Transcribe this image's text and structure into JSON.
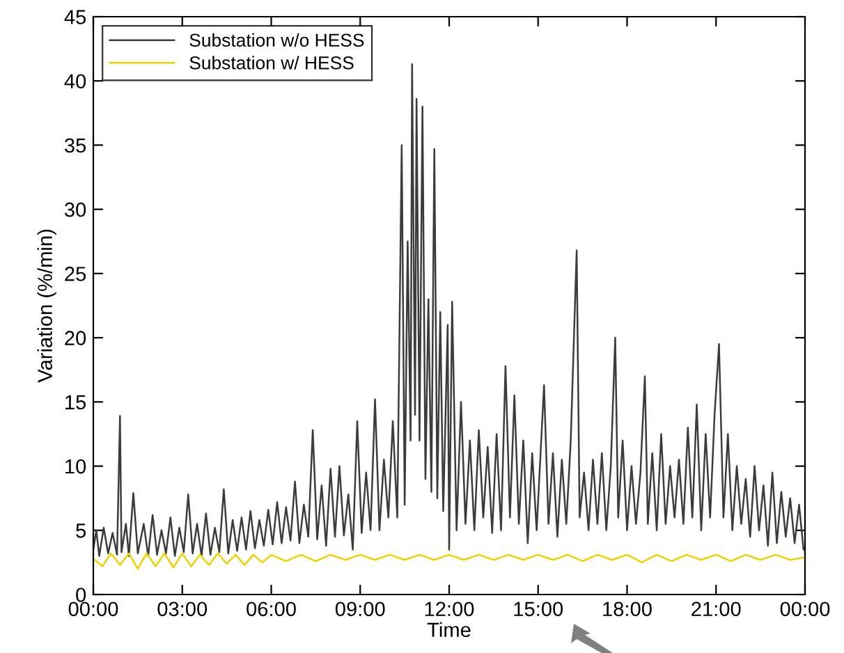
{
  "chart_data": {
    "type": "line",
    "xlabel": "Time",
    "ylabel": "Variation (%/min)",
    "xlim": [
      0,
      24
    ],
    "xticks": [
      {
        "value": 0,
        "label": "00:00"
      },
      {
        "value": 3,
        "label": "03:00"
      },
      {
        "value": 6,
        "label": "06:00"
      },
      {
        "value": 9,
        "label": "09:00"
      },
      {
        "value": 12,
        "label": "12:00"
      },
      {
        "value": 15,
        "label": "15:00"
      },
      {
        "value": 18,
        "label": "18:00"
      },
      {
        "value": 21,
        "label": "21:00"
      },
      {
        "value": 24,
        "label": "00:00"
      }
    ],
    "ylim": [
      0,
      45
    ],
    "yticks": [
      0,
      5,
      10,
      15,
      20,
      25,
      30,
      35,
      40,
      45
    ],
    "grid": false,
    "legend": "top left",
    "marker": "none",
    "line_style": "solid",
    "series": [
      {
        "name": "Substation w/o HESS",
        "color": "#3c3c3c",
        "x": [
          0.0,
          0.1,
          0.2,
          0.35,
          0.5,
          0.65,
          0.8,
          0.9,
          0.95,
          1.1,
          1.2,
          1.35,
          1.5,
          1.7,
          1.85,
          2.0,
          2.15,
          2.3,
          2.45,
          2.6,
          2.75,
          2.9,
          3.05,
          3.2,
          3.35,
          3.5,
          3.65,
          3.8,
          3.95,
          4.1,
          4.25,
          4.4,
          4.55,
          4.7,
          4.85,
          5.0,
          5.15,
          5.3,
          5.45,
          5.6,
          5.75,
          5.9,
          6.05,
          6.2,
          6.35,
          6.5,
          6.65,
          6.8,
          6.95,
          7.1,
          7.25,
          7.4,
          7.55,
          7.7,
          7.85,
          8.0,
          8.15,
          8.3,
          8.45,
          8.6,
          8.75,
          8.9,
          9.05,
          9.2,
          9.35,
          9.5,
          9.65,
          9.8,
          9.95,
          10.1,
          10.25,
          10.4,
          10.5,
          10.6,
          10.7,
          10.75,
          10.85,
          10.9,
          11.0,
          11.1,
          11.2,
          11.3,
          11.4,
          11.5,
          11.6,
          11.7,
          11.8,
          11.95,
          12.0,
          12.1,
          12.25,
          12.4,
          12.55,
          12.7,
          12.85,
          13.0,
          13.15,
          13.3,
          13.45,
          13.6,
          13.75,
          13.9,
          14.05,
          14.2,
          14.35,
          14.5,
          14.65,
          14.8,
          14.95,
          15.2,
          15.35,
          15.5,
          15.65,
          15.8,
          15.95,
          16.1,
          16.3,
          16.4,
          16.55,
          16.7,
          16.85,
          17.0,
          17.15,
          17.3,
          17.45,
          17.6,
          17.7,
          17.85,
          18.0,
          18.15,
          18.3,
          18.45,
          18.6,
          18.7,
          18.85,
          19.0,
          19.15,
          19.3,
          19.45,
          19.6,
          19.75,
          19.9,
          20.05,
          20.2,
          20.35,
          20.5,
          20.65,
          20.8,
          20.95,
          21.1,
          21.25,
          21.4,
          21.55,
          21.7,
          21.85,
          22.0,
          22.15,
          22.3,
          22.45,
          22.6,
          22.75,
          22.9,
          23.05,
          23.2,
          23.35,
          23.5,
          23.65,
          23.8,
          23.95,
          24.0
        ],
        "values": [
          3.5,
          5.0,
          3.0,
          5.2,
          3.2,
          4.8,
          3.1,
          13.9,
          3.3,
          5.5,
          3.0,
          7.9,
          3.2,
          5.5,
          3.0,
          6.2,
          3.1,
          5.0,
          3.2,
          6.0,
          3.0,
          5.2,
          3.3,
          7.8,
          3.2,
          5.5,
          3.0,
          6.3,
          3.1,
          5.2,
          3.3,
          8.2,
          3.2,
          5.8,
          3.4,
          6.0,
          3.5,
          6.5,
          3.6,
          5.8,
          3.8,
          6.6,
          3.9,
          7.2,
          4.0,
          6.8,
          4.2,
          8.8,
          4.0,
          7.0,
          4.5,
          12.8,
          4.3,
          8.5,
          3.8,
          9.8,
          4.5,
          10.0,
          4.6,
          7.8,
          3.5,
          13.5,
          4.8,
          9.5,
          5.0,
          15.2,
          5.0,
          10.5,
          6.0,
          13.5,
          6.0,
          35.0,
          7.0,
          27.5,
          12.0,
          41.3,
          14.0,
          38.6,
          12.0,
          38.0,
          9.0,
          23.0,
          8.0,
          34.7,
          7.5,
          22.0,
          6.5,
          21.0,
          3.5,
          22.8,
          5.0,
          15.0,
          5.5,
          12.0,
          5.0,
          12.8,
          6.0,
          11.5,
          4.8,
          12.5,
          5.0,
          17.8,
          6.0,
          15.5,
          5.5,
          12.0,
          4.0,
          11.0,
          5.0,
          16.3,
          5.5,
          11.0,
          4.5,
          10.5,
          5.5,
          12.0,
          26.8,
          6.0,
          9.5,
          5.0,
          10.5,
          5.5,
          11.0,
          5.0,
          10.0,
          20.0,
          6.0,
          12.0,
          5.0,
          10.0,
          5.5,
          9.5,
          17.0,
          5.5,
          11.0,
          5.0,
          12.5,
          5.5,
          10.0,
          6.0,
          10.5,
          5.5,
          13.0,
          6.0,
          14.8,
          5.0,
          12.5,
          6.0,
          14.0,
          19.5,
          6.0,
          12.5,
          5.0,
          10.0,
          5.5,
          9.0,
          4.5,
          10.0,
          5.0,
          8.5,
          3.8,
          9.5,
          4.0,
          8.0,
          4.5,
          7.5,
          4.0,
          7.0,
          3.5,
          3.5
        ]
      },
      {
        "name": "Substation w/ HESS",
        "color": "#f2d000",
        "x": [
          0,
          0.3,
          0.6,
          0.9,
          1.2,
          1.5,
          1.8,
          2.1,
          2.4,
          2.7,
          3.0,
          3.3,
          3.6,
          3.9,
          4.2,
          4.5,
          4.8,
          5.1,
          5.4,
          5.7,
          6.0,
          6.5,
          7.0,
          7.5,
          8.0,
          8.5,
          9.0,
          9.5,
          10.0,
          10.5,
          11.0,
          11.5,
          12.0,
          12.5,
          13,
          13.5,
          14,
          14.5,
          15,
          15.5,
          16,
          16.5,
          17,
          17.5,
          18,
          18.5,
          19,
          19.5,
          20,
          20.5,
          21,
          21.5,
          22,
          22.5,
          23,
          23.5,
          24
        ],
        "values": [
          2.8,
          2.2,
          3.2,
          2.3,
          3.2,
          2.0,
          3.2,
          2.2,
          3.2,
          2.1,
          3.2,
          2.2,
          3.1,
          2.3,
          3.2,
          2.4,
          3.1,
          2.3,
          3.1,
          2.5,
          3.1,
          2.6,
          3.1,
          2.6,
          3.1,
          2.7,
          3.1,
          2.7,
          3.1,
          2.7,
          3.1,
          2.7,
          3.1,
          2.7,
          3.1,
          2.7,
          3.1,
          2.7,
          3.1,
          2.7,
          3.1,
          2.6,
          3.1,
          2.7,
          3.1,
          2.5,
          3.1,
          2.6,
          3.1,
          2.7,
          3.1,
          2.6,
          3.1,
          2.7,
          3.1,
          2.7,
          2.9
        ]
      }
    ]
  }
}
